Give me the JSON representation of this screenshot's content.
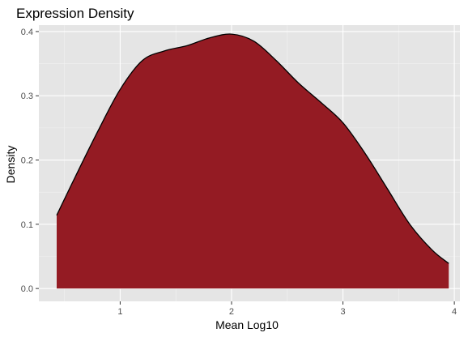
{
  "chart_data": {
    "type": "area",
    "title": "Expression Density",
    "xlabel": "Mean Log10",
    "ylabel": "Density",
    "xlim": [
      0.27,
      4.05
    ],
    "ylim": [
      -0.02,
      0.41
    ],
    "x_ticks": [
      1,
      2,
      3,
      4
    ],
    "y_ticks": [
      0.0,
      0.1,
      0.2,
      0.3,
      0.4
    ],
    "x_tick_labels": [
      "1",
      "2",
      "3",
      "4"
    ],
    "y_tick_labels": [
      "0.0",
      "0.1",
      "0.2",
      "0.3",
      "0.4"
    ],
    "grid": true,
    "legend": "none",
    "fill_color": "#941b23",
    "line_color": "#000000",
    "panel_color": "#e5e5e5",
    "series": [
      {
        "x": [
          0.43,
          0.6,
          0.8,
          1.0,
          1.2,
          1.4,
          1.6,
          1.8,
          2.0,
          2.2,
          2.4,
          2.6,
          2.8,
          3.0,
          3.2,
          3.4,
          3.6,
          3.8,
          3.95
        ],
        "y": [
          0.114,
          0.175,
          0.245,
          0.31,
          0.355,
          0.37,
          0.378,
          0.39,
          0.396,
          0.385,
          0.355,
          0.32,
          0.29,
          0.258,
          0.21,
          0.155,
          0.1,
          0.06,
          0.039
        ]
      }
    ]
  }
}
